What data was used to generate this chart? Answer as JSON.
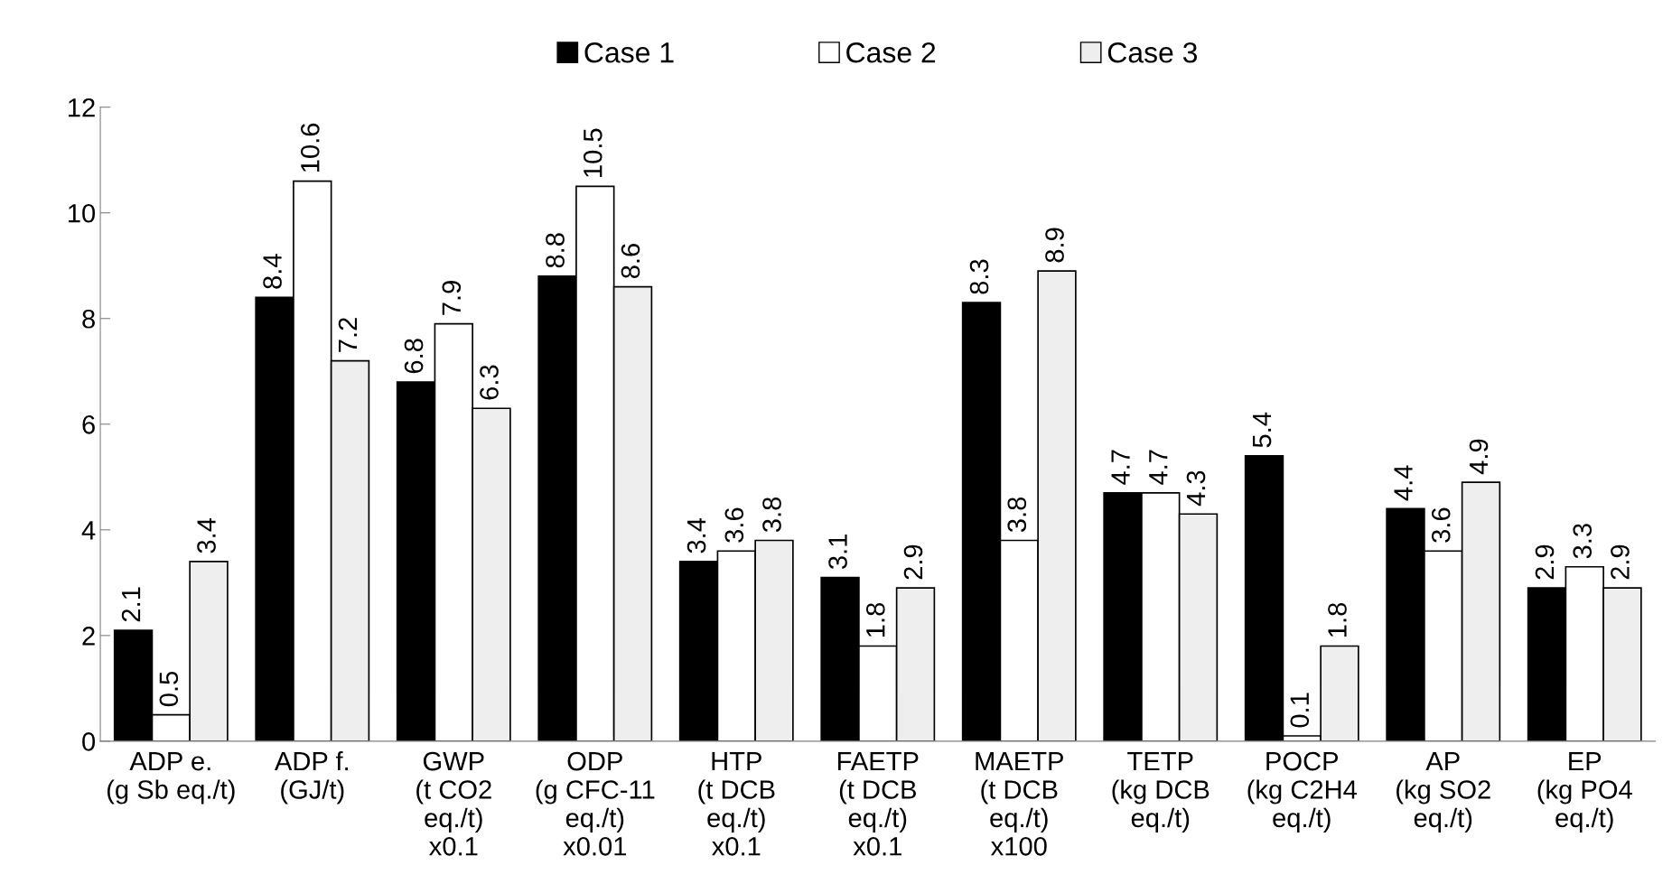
{
  "chart_data": {
    "type": "bar",
    "categories": [
      "ADP e.\n(g Sb eq./t)",
      "ADP f.\n(GJ/t)",
      "GWP\n(t CO2\neq./t)\nx0.1",
      "ODP\n(g CFC-11\neq./t)\nx0.01",
      "HTP\n(t DCB\neq./t)\nx0.1",
      "FAETP\n(t DCB\neq./t)\nx0.1",
      "MAETP\n(t DCB\neq./t)\nx100",
      "TETP\n(kg DCB\neq./t)",
      "POCP\n(kg C2H4\neq./t)",
      "AP\n(kg SO2\neq./t)",
      "EP\n(kg PO4\neq./t)"
    ],
    "series": [
      {
        "name": "Case 1",
        "color": "#000000",
        "values": [
          2.1,
          8.4,
          6.8,
          8.8,
          3.4,
          3.1,
          8.3,
          4.7,
          5.4,
          4.4,
          2.9
        ]
      },
      {
        "name": "Case 2",
        "color": "#ffffff",
        "values": [
          0.5,
          10.6,
          7.9,
          10.5,
          3.6,
          1.8,
          3.8,
          4.7,
          0.1,
          3.6,
          3.3
        ]
      },
      {
        "name": "Case 3",
        "color": "#eeeeee",
        "values": [
          3.4,
          7.2,
          6.3,
          8.6,
          3.8,
          2.9,
          8.9,
          4.3,
          1.8,
          4.9,
          2.9
        ]
      }
    ],
    "ylim": [
      0,
      12
    ],
    "yticks": [
      0,
      2,
      4,
      6,
      8,
      10,
      12
    ],
    "data_labels": true,
    "legend": "top",
    "grid": false
  }
}
